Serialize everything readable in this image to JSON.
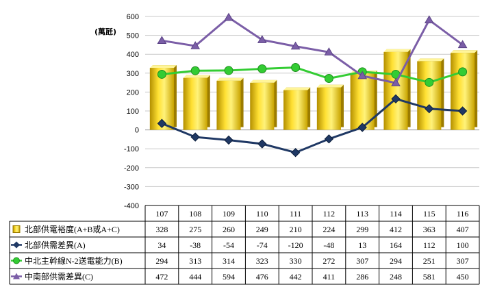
{
  "chart_data": {
    "type": "bar",
    "unit_label": "(萬瓩)",
    "categories": [
      "107",
      "108",
      "109",
      "110",
      "111",
      "112",
      "113",
      "114",
      "115",
      "116"
    ],
    "ylim": [
      -400,
      600
    ],
    "yticks": [
      -400,
      -300,
      -200,
      -100,
      0,
      100,
      200,
      300,
      400,
      500,
      600
    ],
    "grid": true,
    "legend": "table-bottom",
    "series": [
      {
        "name": "北部供電裕度(A+B或A+C)",
        "type": "bar",
        "values": [
          328,
          275,
          260,
          249,
          210,
          224,
          299,
          412,
          363,
          407
        ],
        "color": "#e8c400",
        "marker": "bar"
      },
      {
        "name": "北部供需差異(A)",
        "type": "line",
        "values": [
          34,
          -38,
          -54,
          -74,
          -120,
          -48,
          13,
          164,
          112,
          100
        ],
        "color": "#1f3864",
        "marker": "diamond"
      },
      {
        "name": "中北主幹線N-2送電能力(B)",
        "type": "line",
        "values": [
          294,
          313,
          314,
          323,
          330,
          272,
          307,
          294,
          251,
          307
        ],
        "color": "#33cc33",
        "marker": "circle"
      },
      {
        "name": "中南部供需差異(C)",
        "type": "line",
        "values": [
          472,
          444,
          594,
          476,
          442,
          411,
          286,
          248,
          581,
          450
        ],
        "color": "#7b5ea7",
        "marker": "triangle"
      }
    ]
  }
}
